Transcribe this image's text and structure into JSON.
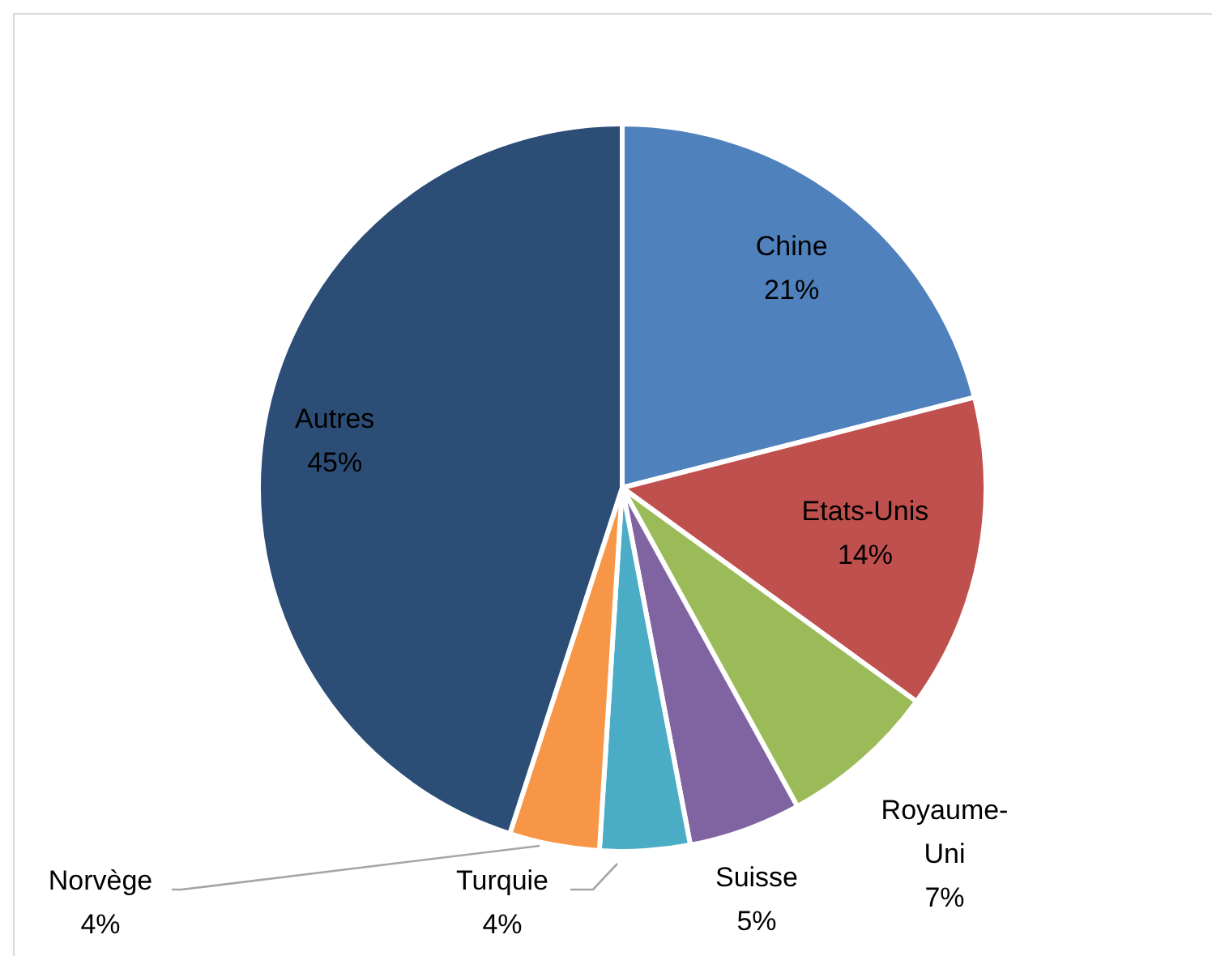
{
  "chart_data": {
    "type": "pie",
    "categories": [
      "Chine",
      "Etats-Unis",
      "Royaume-Uni",
      "Suisse",
      "Turquie",
      "Norvège",
      "Autres"
    ],
    "values": [
      21,
      14,
      7,
      5,
      4,
      4,
      45
    ],
    "colors": [
      "#4f81bd",
      "#c0504d",
      "#9bbb59",
      "#8064a2",
      "#4bacc6",
      "#f79646",
      "#2c4d75"
    ],
    "value_labels": [
      "21%",
      "14%",
      "7%",
      "5%",
      "4%",
      "4%",
      "45%"
    ],
    "legend": false
  }
}
